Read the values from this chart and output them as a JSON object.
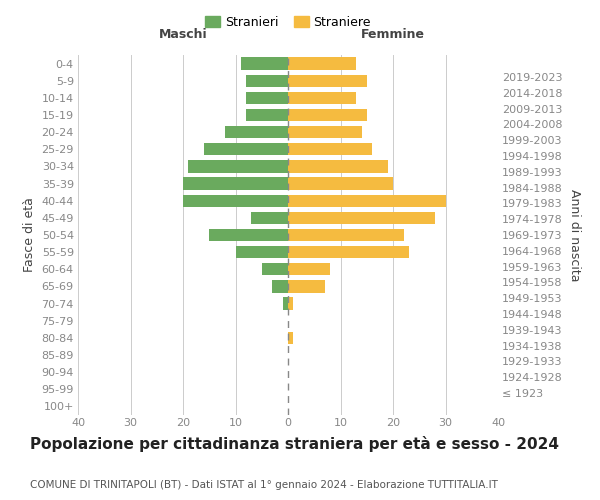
{
  "age_groups": [
    "100+",
    "95-99",
    "90-94",
    "85-89",
    "80-84",
    "75-79",
    "70-74",
    "65-69",
    "60-64",
    "55-59",
    "50-54",
    "45-49",
    "40-44",
    "35-39",
    "30-34",
    "25-29",
    "20-24",
    "15-19",
    "10-14",
    "5-9",
    "0-4"
  ],
  "birth_years": [
    "≤ 1923",
    "1924-1928",
    "1929-1933",
    "1934-1938",
    "1939-1943",
    "1944-1948",
    "1949-1953",
    "1954-1958",
    "1959-1963",
    "1964-1968",
    "1969-1973",
    "1974-1978",
    "1979-1983",
    "1984-1988",
    "1989-1993",
    "1994-1998",
    "1999-2003",
    "2004-2008",
    "2009-2013",
    "2014-2018",
    "2019-2023"
  ],
  "maschi": [
    0,
    0,
    0,
    0,
    0,
    0,
    1,
    3,
    5,
    10,
    15,
    7,
    20,
    20,
    19,
    16,
    12,
    8,
    8,
    8,
    9
  ],
  "femmine": [
    0,
    0,
    0,
    0,
    1,
    0,
    1,
    7,
    8,
    23,
    22,
    28,
    30,
    20,
    19,
    16,
    14,
    15,
    13,
    15,
    13
  ],
  "maschi_color": "#6aaa5e",
  "femmine_color": "#f5bb40",
  "background_color": "#ffffff",
  "grid_color": "#cccccc",
  "title": "Popolazione per cittadinanza straniera per età e sesso - 2024",
  "subtitle": "COMUNE DI TRINITAPOLI (BT) - Dati ISTAT al 1° gennaio 2024 - Elaborazione TUTTITALIA.IT",
  "xlabel_left": "Maschi",
  "xlabel_right": "Femmine",
  "ylabel_left": "Fasce di età",
  "ylabel_right": "Anni di nascita",
  "legend_maschi": "Stranieri",
  "legend_femmine": "Straniere",
  "xlim": 40,
  "tick_color": "#888888",
  "center_line_color": "#888888",
  "title_fontsize": 11,
  "subtitle_fontsize": 7.5,
  "axis_label_fontsize": 9,
  "tick_fontsize": 8
}
